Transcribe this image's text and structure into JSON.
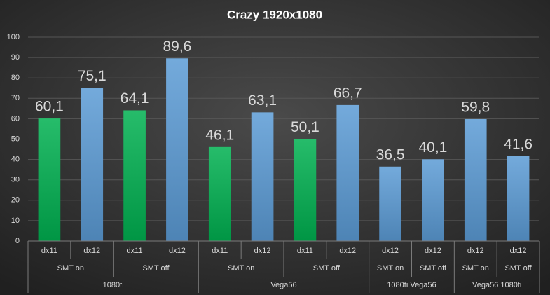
{
  "chart_data": {
    "type": "bar",
    "title": "Crazy  1920x1080",
    "ylim": [
      0,
      100
    ],
    "yticks": [
      0,
      10,
      20,
      30,
      40,
      50,
      60,
      70,
      80,
      90,
      100
    ],
    "grid": true,
    "groups": [
      {
        "name": "1080ti",
        "groups": [
          {
            "name": "SMT on",
            "categories": [
              "dx11",
              "dx12"
            ],
            "values": [
              60.1,
              75.1
            ],
            "value_labels": [
              "60,1",
              "75,1"
            ],
            "colors": [
              "#00b050",
              "#5b9bd5"
            ]
          },
          {
            "name": "SMT off",
            "categories": [
              "dx11",
              "dx12"
            ],
            "values": [
              64.1,
              89.6
            ],
            "value_labels": [
              "64,1",
              "89,6"
            ],
            "colors": [
              "#00b050",
              "#5b9bd5"
            ]
          }
        ]
      },
      {
        "name": "Vega56",
        "groups": [
          {
            "name": "SMT on",
            "categories": [
              "dx11",
              "dx12"
            ],
            "values": [
              46.1,
              63.1
            ],
            "value_labels": [
              "46,1",
              "63,1"
            ],
            "colors": [
              "#00b050",
              "#5b9bd5"
            ]
          },
          {
            "name": "SMT off",
            "categories": [
              "dx11",
              "dx12"
            ],
            "values": [
              50.1,
              66.7
            ],
            "value_labels": [
              "50,1",
              "66,7"
            ],
            "colors": [
              "#00b050",
              "#5b9bd5"
            ]
          }
        ]
      },
      {
        "name": "1080ti Vega56",
        "groups": [
          {
            "name": "SMT on",
            "categories": [
              "dx12"
            ],
            "values": [
              36.5
            ],
            "value_labels": [
              "36,5"
            ],
            "colors": [
              "#5b9bd5"
            ]
          },
          {
            "name": "SMT off",
            "categories": [
              "dx12"
            ],
            "values": [
              40.1
            ],
            "value_labels": [
              "40,1"
            ],
            "colors": [
              "#5b9bd5"
            ]
          }
        ]
      },
      {
        "name": "Vega56 1080ti",
        "groups": [
          {
            "name": "SMT on",
            "categories": [
              "dx12"
            ],
            "values": [
              59.8
            ],
            "value_labels": [
              "59,8"
            ],
            "colors": [
              "#5b9bd5"
            ]
          },
          {
            "name": "SMT off",
            "categories": [
              "dx12"
            ],
            "values": [
              41.6
            ],
            "value_labels": [
              "41,6"
            ],
            "colors": [
              "#5b9bd5"
            ]
          }
        ]
      }
    ]
  }
}
